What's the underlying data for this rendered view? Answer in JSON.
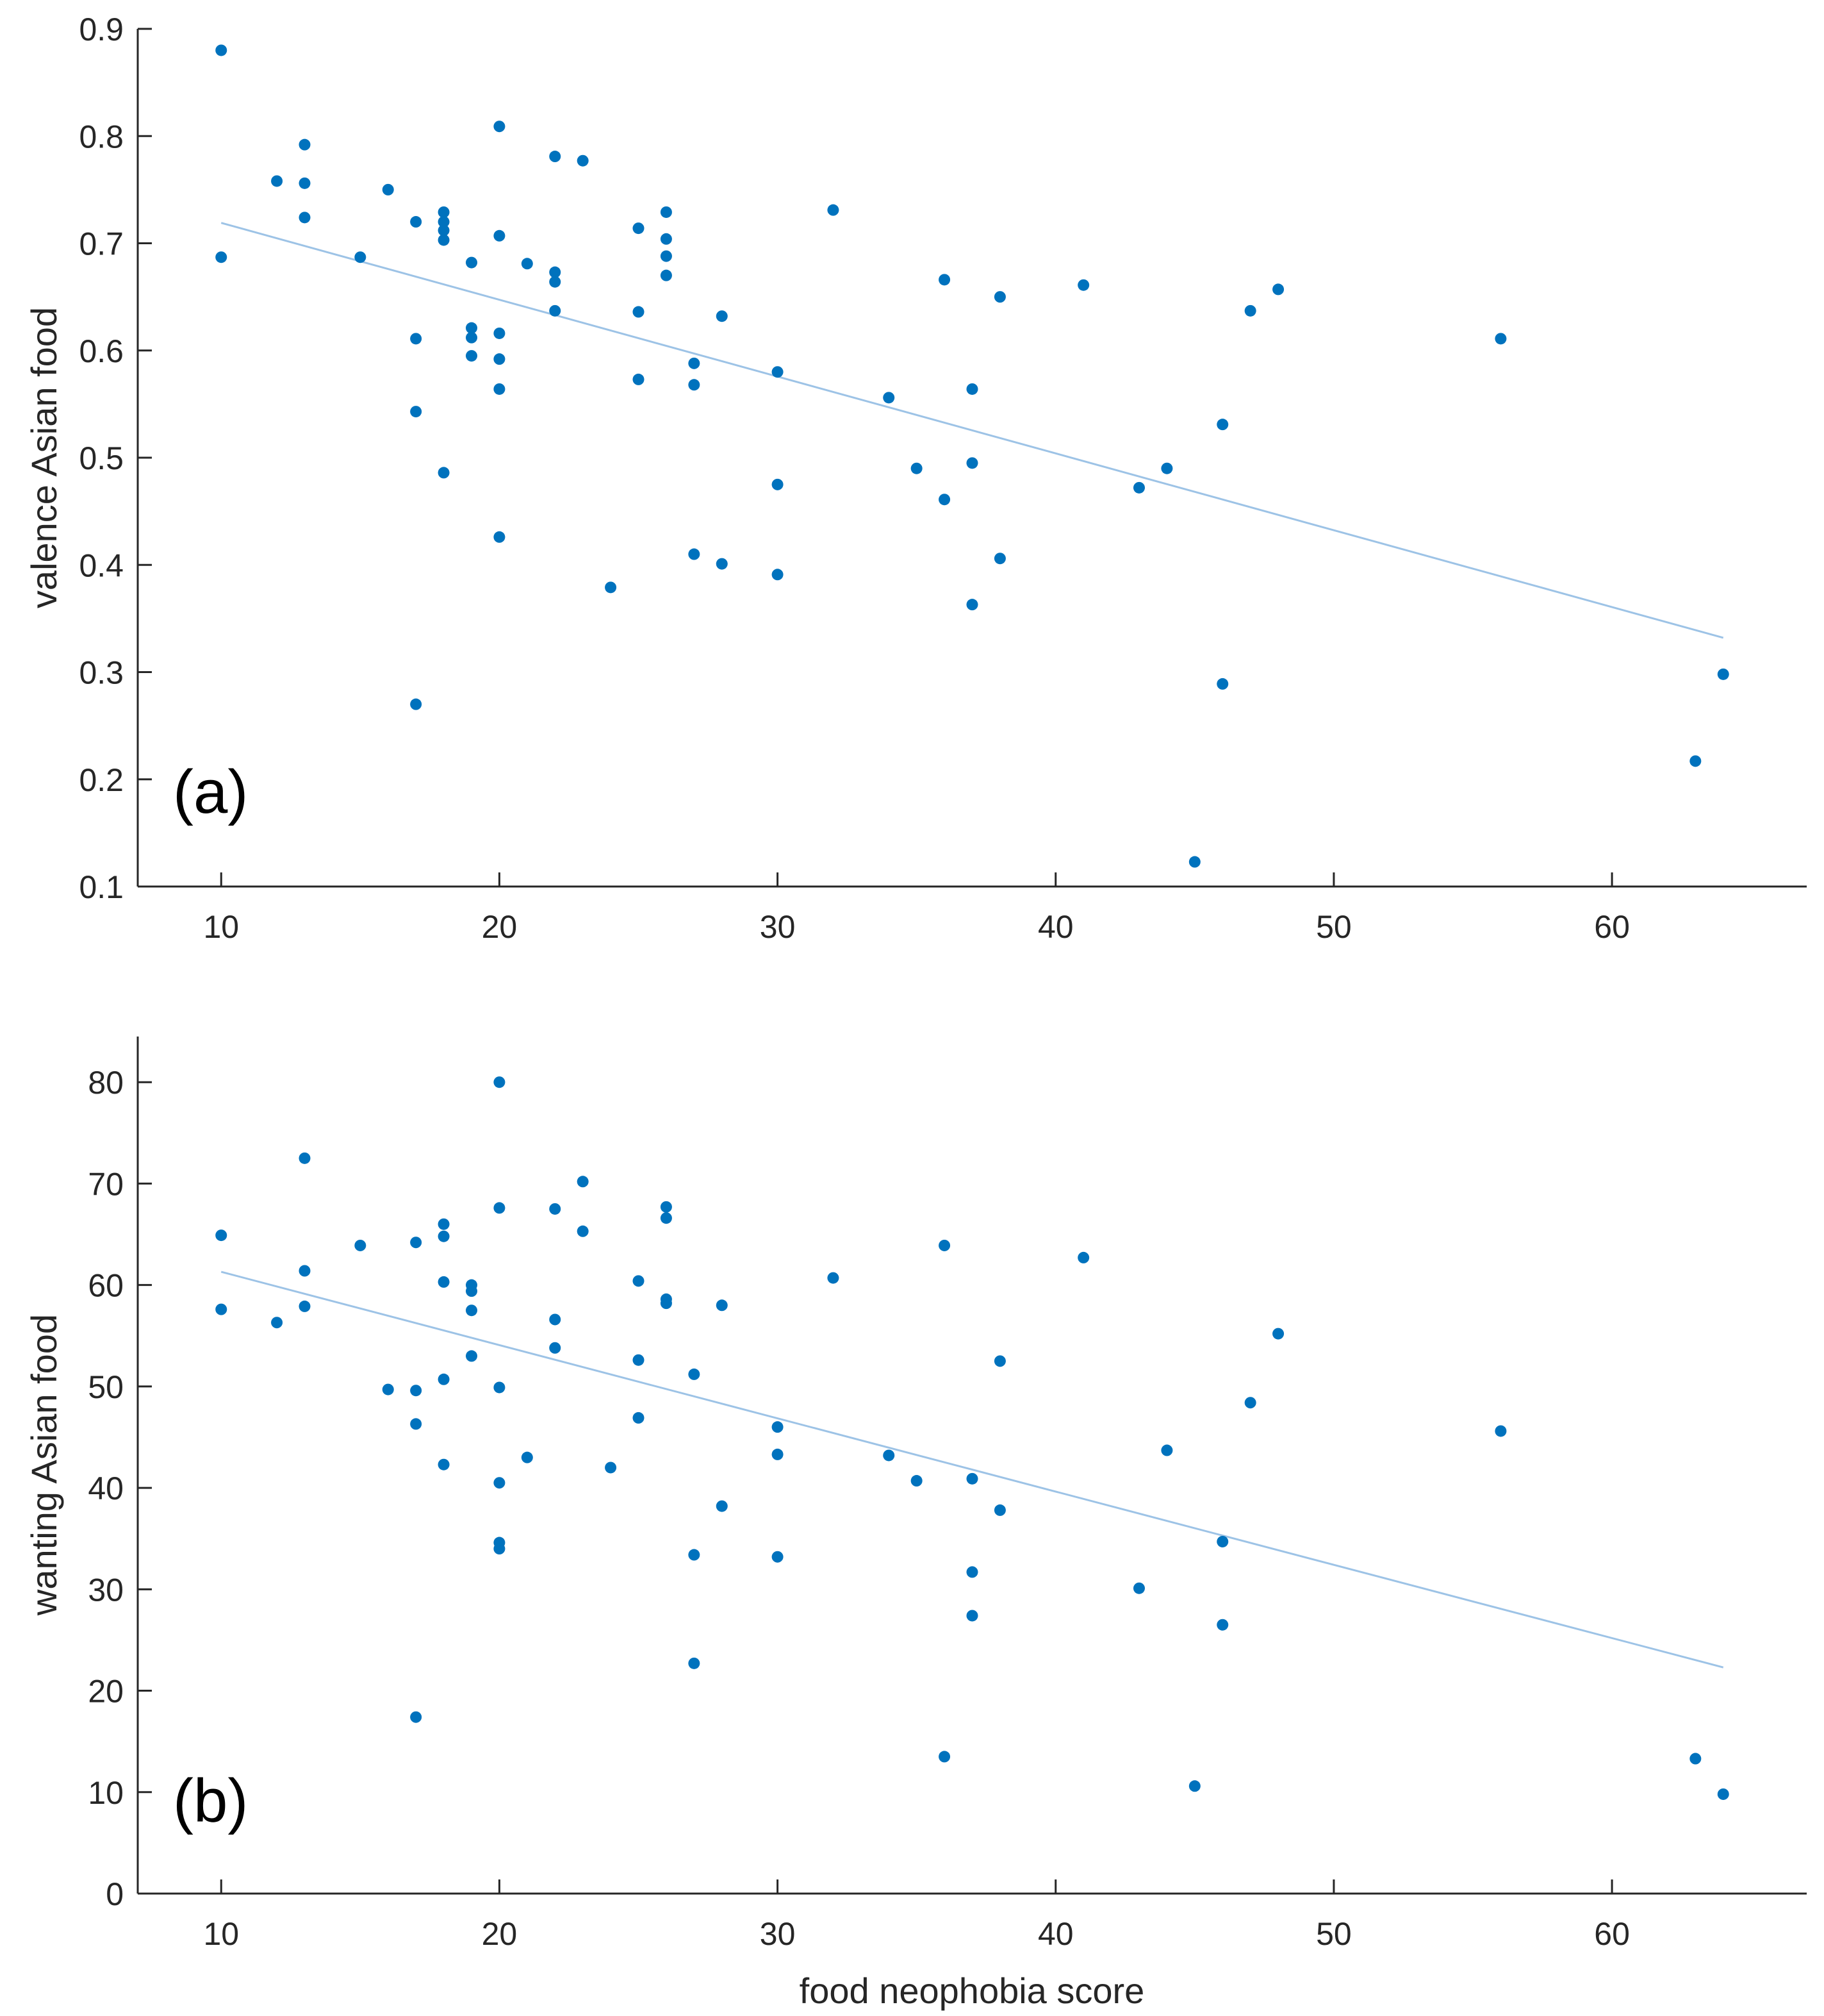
{
  "figure": {
    "axis_color": "#262626",
    "point_color": "#0072BD",
    "fit_color": "#9DC3E6"
  },
  "chart_data": [
    {
      "type": "scatter",
      "panel_label": "(a)",
      "title": "",
      "xlabel": "",
      "ylabel": "valence Asian food",
      "xlim": [
        7,
        67
      ],
      "ylim": [
        0.1,
        0.9
      ],
      "xticks": [
        10,
        20,
        30,
        40,
        50,
        60
      ],
      "yticks": [
        0.1,
        0.2,
        0.3,
        0.4,
        0.5,
        0.6,
        0.7,
        0.8,
        0.9
      ],
      "xtick_labels": [
        "10",
        "20",
        "30",
        "40",
        "50",
        "60"
      ],
      "ytick_labels": [
        "0.1",
        "0.2",
        "0.3",
        "0.4",
        "0.5",
        "0.6",
        "0.7",
        "0.8",
        "0.9"
      ],
      "fit_line": {
        "x": [
          10,
          64
        ],
        "y": [
          0.719,
          0.332
        ]
      },
      "points": [
        [
          10,
          0.88
        ],
        [
          10,
          0.687
        ],
        [
          12,
          0.758
        ],
        [
          13,
          0.792
        ],
        [
          13,
          0.756
        ],
        [
          13,
          0.724
        ],
        [
          15,
          0.687
        ],
        [
          16,
          0.75
        ],
        [
          17,
          0.72
        ],
        [
          17,
          0.611
        ],
        [
          17,
          0.543
        ],
        [
          17,
          0.27
        ],
        [
          18,
          0.729
        ],
        [
          18,
          0.72
        ],
        [
          18,
          0.712
        ],
        [
          18,
          0.703
        ],
        [
          18,
          0.486
        ],
        [
          19,
          0.682
        ],
        [
          19,
          0.621
        ],
        [
          19,
          0.612
        ],
        [
          19,
          0.595
        ],
        [
          20,
          0.809
        ],
        [
          20,
          0.707
        ],
        [
          20,
          0.616
        ],
        [
          20,
          0.592
        ],
        [
          20,
          0.564
        ],
        [
          20,
          0.426
        ],
        [
          21,
          0.681
        ],
        [
          22,
          0.781
        ],
        [
          22,
          0.673
        ],
        [
          22,
          0.664
        ],
        [
          22,
          0.637
        ],
        [
          23,
          0.777
        ],
        [
          24,
          0.379
        ],
        [
          25,
          0.714
        ],
        [
          25,
          0.636
        ],
        [
          25,
          0.573
        ],
        [
          26,
          0.729
        ],
        [
          26,
          0.704
        ],
        [
          26,
          0.688
        ],
        [
          26,
          0.67
        ],
        [
          27,
          0.588
        ],
        [
          27,
          0.568
        ],
        [
          27,
          0.41
        ],
        [
          28,
          0.632
        ],
        [
          28,
          0.401
        ],
        [
          30,
          0.58
        ],
        [
          30,
          0.475
        ],
        [
          30,
          0.391
        ],
        [
          32,
          0.731
        ],
        [
          34,
          0.556
        ],
        [
          35,
          0.49
        ],
        [
          36,
          0.666
        ],
        [
          36,
          0.461
        ],
        [
          37,
          0.564
        ],
        [
          37,
          0.495
        ],
        [
          37,
          0.363
        ],
        [
          38,
          0.65
        ],
        [
          38,
          0.406
        ],
        [
          41,
          0.661
        ],
        [
          43,
          0.472
        ],
        [
          44,
          0.49
        ],
        [
          45,
          0.123
        ],
        [
          46,
          0.531
        ],
        [
          46,
          0.289
        ],
        [
          47,
          0.637
        ],
        [
          48,
          0.657
        ],
        [
          56,
          0.611
        ],
        [
          63,
          0.217
        ],
        [
          64,
          0.298
        ]
      ]
    },
    {
      "type": "scatter",
      "panel_label": "(b)",
      "title": "",
      "xlabel": "food neophobia score",
      "ylabel": "wanting Asian food",
      "xlim": [
        7,
        67
      ],
      "ylim": [
        0,
        84.5
      ],
      "xticks": [
        10,
        20,
        30,
        40,
        50,
        60
      ],
      "yticks": [
        0,
        10,
        20,
        30,
        40,
        50,
        60,
        70,
        80
      ],
      "xtick_labels": [
        "10",
        "20",
        "30",
        "40",
        "50",
        "60"
      ],
      "ytick_labels": [
        "0",
        "10",
        "20",
        "30",
        "40",
        "50",
        "60",
        "70",
        "80"
      ],
      "fit_line": {
        "x": [
          10,
          64
        ],
        "y": [
          61.3,
          22.3
        ]
      },
      "points": [
        [
          10,
          64.9
        ],
        [
          10,
          57.6
        ],
        [
          12,
          56.3
        ],
        [
          13,
          72.5
        ],
        [
          13,
          61.4
        ],
        [
          13,
          57.9
        ],
        [
          15,
          63.9
        ],
        [
          16,
          49.7
        ],
        [
          17,
          64.2
        ],
        [
          17,
          49.6
        ],
        [
          17,
          46.3
        ],
        [
          17,
          17.4
        ],
        [
          18,
          66
        ],
        [
          18,
          64.8
        ],
        [
          18,
          60.3
        ],
        [
          18,
          50.7
        ],
        [
          18,
          42.3
        ],
        [
          19,
          60
        ],
        [
          19,
          59.4
        ],
        [
          19,
          57.5
        ],
        [
          19,
          53
        ],
        [
          20,
          80
        ],
        [
          20,
          67.6
        ],
        [
          20,
          49.9
        ],
        [
          20,
          40.5
        ],
        [
          20,
          34.6
        ],
        [
          20,
          34
        ],
        [
          21,
          43
        ],
        [
          22,
          67.5
        ],
        [
          22,
          56.6
        ],
        [
          22,
          53.8
        ],
        [
          23,
          70.2
        ],
        [
          23,
          65.3
        ],
        [
          24,
          42
        ],
        [
          25,
          60.4
        ],
        [
          25,
          52.6
        ],
        [
          25,
          46.9
        ],
        [
          26,
          67.7
        ],
        [
          26,
          66.6
        ],
        [
          26,
          58.6
        ],
        [
          26,
          58.2
        ],
        [
          27,
          51.2
        ],
        [
          27,
          33.4
        ],
        [
          27,
          22.7
        ],
        [
          28,
          58
        ],
        [
          28,
          38.2
        ],
        [
          30,
          46
        ],
        [
          30,
          43.3
        ],
        [
          30,
          33.2
        ],
        [
          32,
          60.7
        ],
        [
          34,
          43.2
        ],
        [
          35,
          40.7
        ],
        [
          36,
          63.9
        ],
        [
          36,
          13.5
        ],
        [
          37,
          40.9
        ],
        [
          37,
          31.7
        ],
        [
          37,
          27.4
        ],
        [
          38,
          52.5
        ],
        [
          38,
          37.8
        ],
        [
          41,
          62.7
        ],
        [
          43,
          30.1
        ],
        [
          44,
          43.7
        ],
        [
          45,
          10.6
        ],
        [
          46,
          34.7
        ],
        [
          46,
          26.5
        ],
        [
          47,
          48.4
        ],
        [
          48,
          55.2
        ],
        [
          56,
          45.6
        ],
        [
          63,
          13.3
        ],
        [
          64,
          9.8
        ]
      ]
    }
  ]
}
